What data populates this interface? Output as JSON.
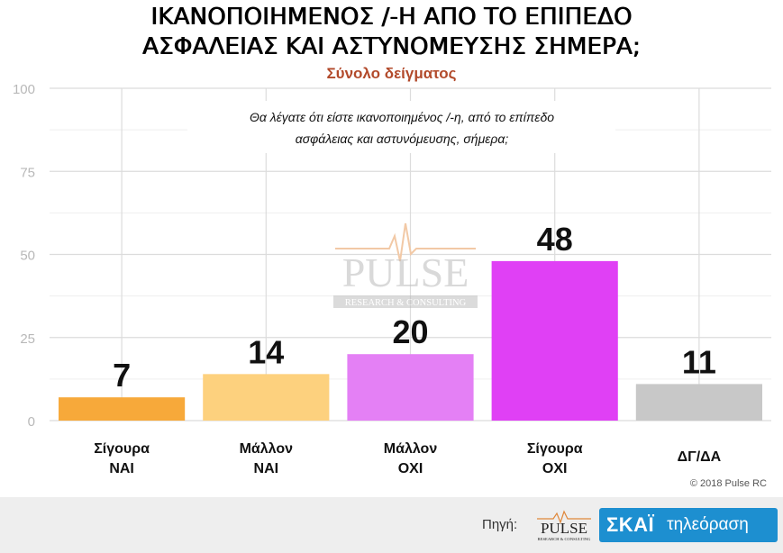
{
  "header": {
    "title_line1": "ΙΚΑΝΟΠΟΙΗΜΕΝΟΣ /-Η  ΑΠΟ ΤΟ ΕΠΙΠΕΔΟ",
    "title_line2": "ΑΣΦΑΛΕΙΑΣ ΚΑΙ ΑΣΤΥΝΟΜΕΥΣΗΣ ΣΗΜΕΡΑ;",
    "subtitle": "Σύνολο δείγματος"
  },
  "chart_data": {
    "type": "bar",
    "annotation_line1": "Θα λέγατε ότι είστε ικανοποιημένος /-η, από το επίπεδο",
    "annotation_line2": "ασφάλειας και αστυνόμευσης, σήμερα;",
    "categories": [
      [
        "Σίγουρα",
        "ΝΑΙ"
      ],
      [
        "Μάλλον",
        "ΝΑΙ"
      ],
      [
        "Μάλλον",
        "ΟΧΙ"
      ],
      [
        "Σίγουρα",
        "ΟΧΙ"
      ],
      [
        "ΔΓ/ΔΑ"
      ]
    ],
    "values": [
      7,
      14,
      20,
      48,
      11
    ],
    "colors": [
      "#f7a93a",
      "#fdd17e",
      "#e480f5",
      "#e040f5",
      "#c8c8c8"
    ],
    "ylim": [
      0,
      100
    ],
    "yticks": [
      0,
      25,
      50,
      75,
      100
    ],
    "grid": true,
    "watermark": "PULSE",
    "watermark_sub": "RESEARCH & CONSULTING"
  },
  "copyright": "© 2018 Pulse RC",
  "footer": {
    "source_label": "Πηγή:",
    "pulse_logo": "PULSE",
    "pulse_logo_sub": "RESEARCH & CONSULTING",
    "skai_logo": "ΣΚΑΪ",
    "skai_tv": "τηλεόραση"
  }
}
